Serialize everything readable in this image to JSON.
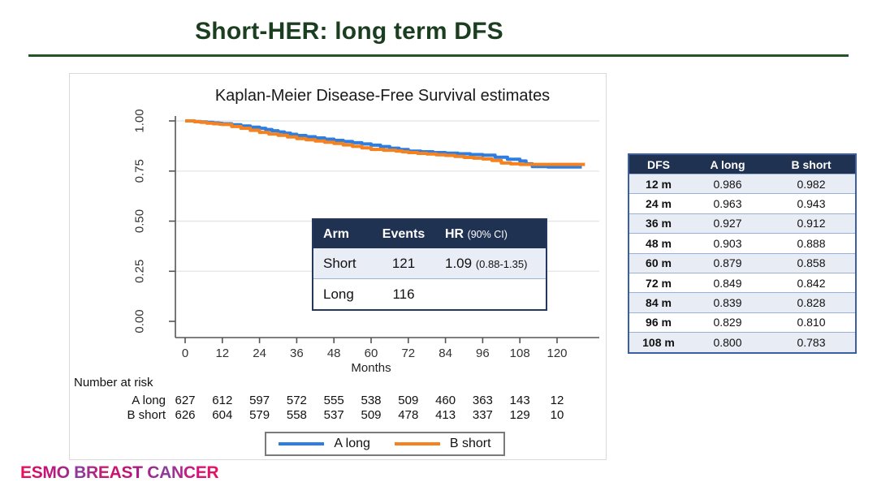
{
  "slide": {
    "title": "Short-HER: long term DFS",
    "footer_logo": "ESMO BREAST CANCER"
  },
  "chart": {
    "title": "Kaplan-Meier Disease-Free Survival estimates",
    "xlabel": "Months",
    "x_ticks": [
      "0",
      "12",
      "24",
      "36",
      "48",
      "60",
      "72",
      "84",
      "96",
      "108",
      "120"
    ],
    "y_ticks": [
      "0.00",
      "0.25",
      "0.50",
      "0.75",
      "1.00"
    ]
  },
  "chart_data": {
    "type": "line",
    "subtype": "kaplan-meier-step",
    "title": "Kaplan-Meier Disease-Free Survival estimates",
    "xlabel": "Months",
    "ylabel": "",
    "xlim": [
      0,
      130
    ],
    "ylim": [
      0,
      1.0
    ],
    "grid": "horizontal",
    "legend_position": "bottom",
    "series": [
      {
        "name": "A long",
        "color": "#2e7de1",
        "steps": [
          [
            0,
            1.0
          ],
          [
            3,
            0.997
          ],
          [
            5,
            0.995
          ],
          [
            7,
            0.993
          ],
          [
            9,
            0.99
          ],
          [
            11,
            0.988
          ],
          [
            12,
            0.986
          ],
          [
            15,
            0.981
          ],
          [
            18,
            0.975
          ],
          [
            21,
            0.969
          ],
          [
            24,
            0.963
          ],
          [
            26,
            0.957
          ],
          [
            28,
            0.951
          ],
          [
            30,
            0.945
          ],
          [
            32,
            0.939
          ],
          [
            34,
            0.933
          ],
          [
            36,
            0.927
          ],
          [
            39,
            0.921
          ],
          [
            42,
            0.915
          ],
          [
            45,
            0.909
          ],
          [
            48,
            0.903
          ],
          [
            51,
            0.897
          ],
          [
            54,
            0.891
          ],
          [
            57,
            0.885
          ],
          [
            60,
            0.879
          ],
          [
            63,
            0.872
          ],
          [
            66,
            0.864
          ],
          [
            69,
            0.857
          ],
          [
            72,
            0.849
          ],
          [
            76,
            0.846
          ],
          [
            80,
            0.842
          ],
          [
            84,
            0.839
          ],
          [
            88,
            0.836
          ],
          [
            92,
            0.832
          ],
          [
            96,
            0.829
          ],
          [
            100,
            0.819
          ],
          [
            104,
            0.809
          ],
          [
            108,
            0.8
          ],
          [
            110,
            0.786
          ],
          [
            112,
            0.772
          ],
          [
            117,
            0.77
          ],
          [
            128,
            0.77
          ]
        ]
      },
      {
        "name": "B short",
        "color": "#f6821f",
        "steps": [
          [
            0,
            1.0
          ],
          [
            3,
            0.996
          ],
          [
            5,
            0.993
          ],
          [
            7,
            0.989
          ],
          [
            9,
            0.986
          ],
          [
            11,
            0.984
          ],
          [
            12,
            0.982
          ],
          [
            15,
            0.972
          ],
          [
            18,
            0.963
          ],
          [
            21,
            0.953
          ],
          [
            24,
            0.943
          ],
          [
            27,
            0.935
          ],
          [
            30,
            0.928
          ],
          [
            33,
            0.92
          ],
          [
            36,
            0.912
          ],
          [
            39,
            0.906
          ],
          [
            42,
            0.9
          ],
          [
            45,
            0.894
          ],
          [
            48,
            0.888
          ],
          [
            51,
            0.88
          ],
          [
            54,
            0.873
          ],
          [
            57,
            0.865
          ],
          [
            60,
            0.858
          ],
          [
            64,
            0.854
          ],
          [
            68,
            0.85
          ],
          [
            70,
            0.846
          ],
          [
            72,
            0.842
          ],
          [
            75,
            0.838
          ],
          [
            78,
            0.835
          ],
          [
            81,
            0.831
          ],
          [
            84,
            0.828
          ],
          [
            87,
            0.823
          ],
          [
            90,
            0.818
          ],
          [
            93,
            0.814
          ],
          [
            96,
            0.81
          ],
          [
            99,
            0.803
          ],
          [
            102,
            0.79
          ],
          [
            105,
            0.786
          ],
          [
            108,
            0.783
          ],
          [
            129,
            0.783
          ]
        ]
      }
    ],
    "key_values": {
      "months": [
        12,
        24,
        36,
        48,
        60,
        72,
        84,
        96,
        108
      ],
      "A_long": [
        0.986,
        0.963,
        0.927,
        0.903,
        0.879,
        0.849,
        0.839,
        0.829,
        0.8
      ],
      "B_short": [
        0.982,
        0.943,
        0.912,
        0.888,
        0.858,
        0.842,
        0.828,
        0.81,
        0.783
      ]
    }
  },
  "inset_table": {
    "header": {
      "arm": "Arm",
      "events": "Events",
      "hr": "HR",
      "hr_ci": "(90% CI)"
    },
    "rows": [
      {
        "arm": "Short",
        "events": "121",
        "hr": "1.09",
        "ci": "(0.88-1.35)"
      },
      {
        "arm": "Long",
        "events": "116",
        "hr": "",
        "ci": ""
      }
    ]
  },
  "dfs_table": {
    "headers": [
      "DFS",
      "A long",
      "B short"
    ],
    "rows": [
      [
        "12 m",
        "0.986",
        "0.982"
      ],
      [
        "24 m",
        "0.963",
        "0.943"
      ],
      [
        "36 m",
        "0.927",
        "0.912"
      ],
      [
        "48 m",
        "0.903",
        "0.888"
      ],
      [
        "60 m",
        "0.879",
        "0.858"
      ],
      [
        "72 m",
        "0.849",
        "0.842"
      ],
      [
        "84 m",
        "0.839",
        "0.828"
      ],
      [
        "96 m",
        "0.829",
        "0.810"
      ],
      [
        "108 m",
        "0.800",
        "0.783"
      ]
    ]
  },
  "risk": {
    "label": "Number at risk",
    "rows": [
      {
        "name": "A long",
        "counts": [
          "627",
          "612",
          "597",
          "572",
          "555",
          "538",
          "509",
          "460",
          "363",
          "143",
          "12"
        ]
      },
      {
        "name": "B short",
        "counts": [
          "626",
          "604",
          "579",
          "558",
          "537",
          "509",
          "478",
          "413",
          "337",
          "129",
          "10"
        ]
      }
    ]
  },
  "legend": {
    "items": [
      {
        "label": "A long",
        "color": "#2e7de1"
      },
      {
        "label": "B short",
        "color": "#f6821f"
      }
    ]
  },
  "colors": {
    "title_green": "#1a3e1f",
    "header_navy": "#1f3251",
    "row_light": "#e9edf5",
    "table_border_blue": "#3a5fa5",
    "curve_blue": "#2e7de1",
    "curve_orange": "#f6821f"
  }
}
